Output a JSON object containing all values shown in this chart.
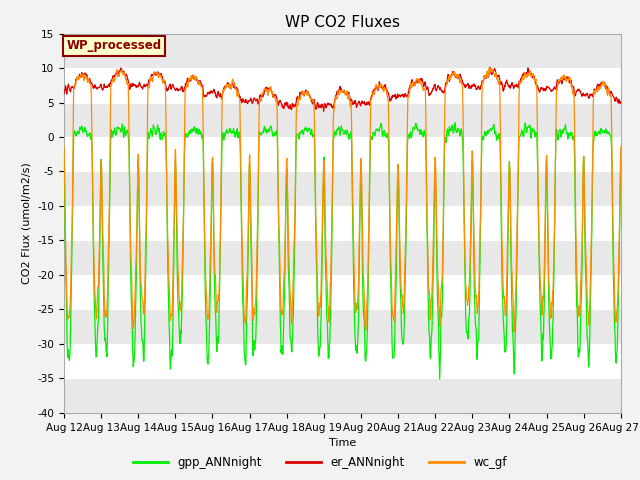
{
  "title": "WP CO2 Fluxes",
  "xlabel": "Time",
  "ylabel": "CO2 Flux (umol/m2/s)",
  "ylim": [
    -40,
    15
  ],
  "annotation_text": "WP_processed",
  "annotation_color": "#8B0000",
  "annotation_bg": "#FFFFCC",
  "legend_entries": [
    "gpp_ANNnight",
    "er_ANNnight",
    "wc_gf"
  ],
  "line_colors": [
    "#00EE00",
    "#DD0000",
    "#FF8C00"
  ],
  "tick_labels": [
    "Aug 12",
    "Aug 13",
    "Aug 14",
    "Aug 15",
    "Aug 16",
    "Aug 17",
    "Aug 18",
    "Aug 19",
    "Aug 20",
    "Aug 21",
    "Aug 22",
    "Aug 23",
    "Aug 24",
    "Aug 25",
    "Aug 26",
    "Aug 27"
  ],
  "title_fontsize": 11,
  "label_fontsize": 8,
  "tick_fontsize": 7.5,
  "fig_bg": "#F2F2F2",
  "plot_bg": "#FFFFFF",
  "band_colors": [
    "#E8E8E8",
    "#FFFFFF"
  ]
}
